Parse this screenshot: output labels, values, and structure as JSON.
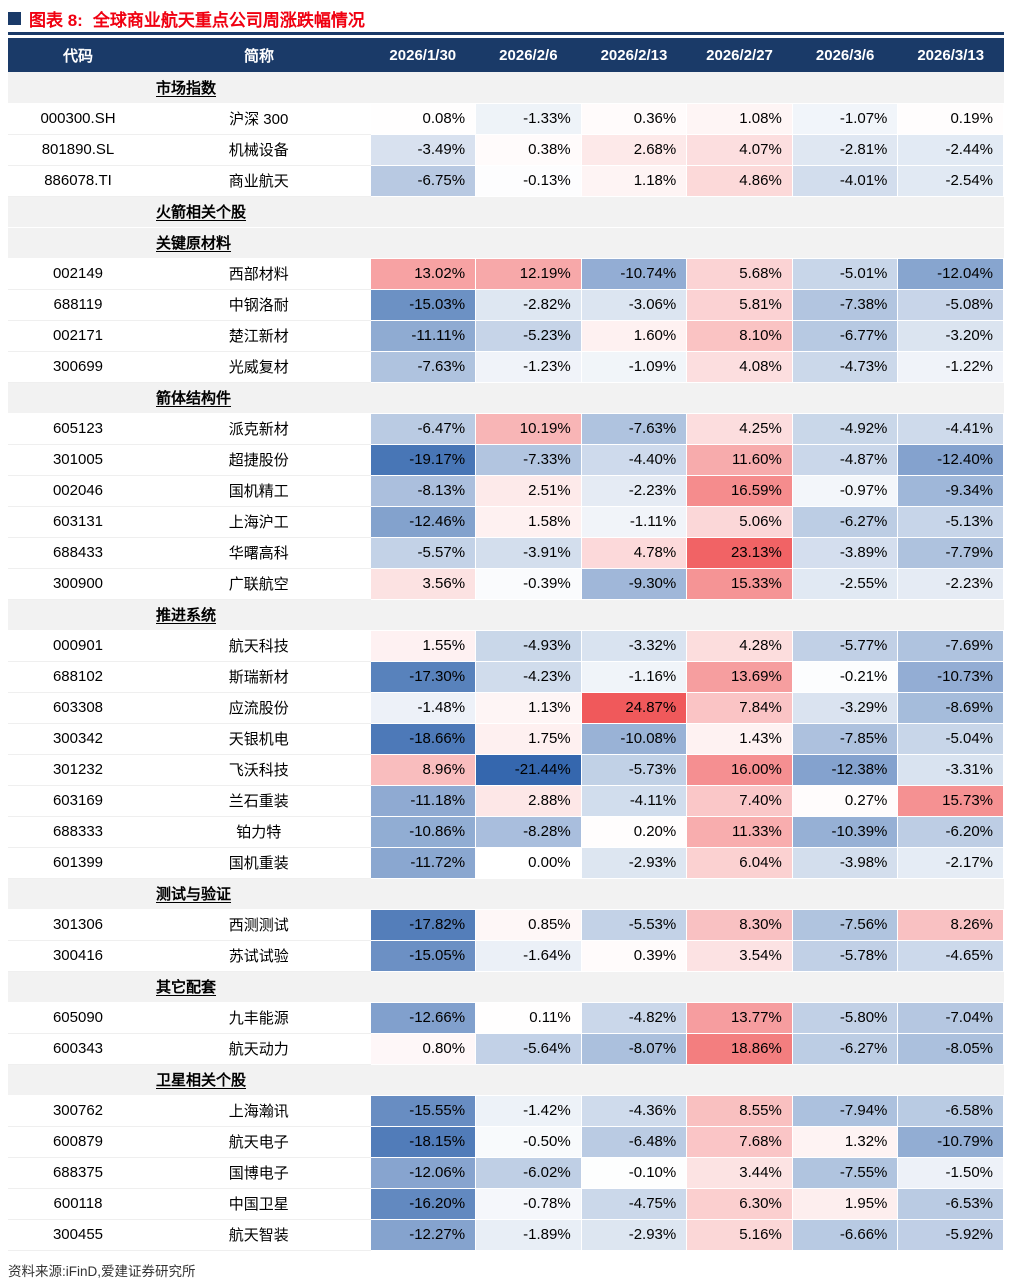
{
  "title": {
    "prefix": "图表 8:",
    "text": "全球商业航天重点公司周涨跌幅情况"
  },
  "footer": {
    "source": "资料来源:iFinD,爱建证券研究所"
  },
  "colors": {
    "header_bg": "#1A3A68",
    "title_red": "#F00011",
    "section_bg": "#F2F2F2"
  },
  "chart_data": {
    "type": "heatmap",
    "title": "全球商业航天重点公司周涨跌幅情况",
    "unit": "%",
    "row_headers": [
      "代码",
      "简称"
    ],
    "columns": [
      "2026/1/30",
      "2026/2/6",
      "2026/2/13",
      "2026/2/27",
      "2026/3/6",
      "2026/3/13"
    ],
    "color_scale": {
      "positive": "#F0595B",
      "negative": "#3567AE",
      "neutral": "#FFFFFF",
      "max_pos": 24.87,
      "max_neg": -21.44
    },
    "sections": [
      {
        "label": "市场指数",
        "rows": [
          {
            "code": "000300.SH",
            "name": "沪深 300",
            "values": [
              0.08,
              -1.33,
              0.36,
              1.08,
              -1.07,
              0.19
            ]
          },
          {
            "code": "801890.SL",
            "name": "机械设备",
            "values": [
              -3.49,
              0.38,
              2.68,
              4.07,
              -2.81,
              -2.44
            ]
          },
          {
            "code": "886078.TI",
            "name": "商业航天",
            "values": [
              -6.75,
              -0.13,
              1.18,
              4.86,
              -4.01,
              -2.54
            ]
          }
        ]
      },
      {
        "label": "火箭相关个股",
        "rows": []
      },
      {
        "label": "关键原材料",
        "rows": [
          {
            "code": "002149",
            "name": "西部材料",
            "values": [
              13.02,
              12.19,
              -10.74,
              5.68,
              -5.01,
              -12.04
            ]
          },
          {
            "code": "688119",
            "name": "中钢洛耐",
            "values": [
              -15.03,
              -2.82,
              -3.06,
              5.81,
              -7.38,
              -5.08
            ]
          },
          {
            "code": "002171",
            "name": "楚江新材",
            "values": [
              -11.11,
              -5.23,
              1.6,
              8.1,
              -6.77,
              -3.2
            ]
          },
          {
            "code": "300699",
            "name": "光威复材",
            "values": [
              -7.63,
              -1.23,
              -1.09,
              4.08,
              -4.73,
              -1.22
            ]
          }
        ]
      },
      {
        "label": "箭体结构件",
        "rows": [
          {
            "code": "605123",
            "name": "派克新材",
            "values": [
              -6.47,
              10.19,
              -7.63,
              4.25,
              -4.92,
              -4.41
            ]
          },
          {
            "code": "301005",
            "name": "超捷股份",
            "values": [
              -19.17,
              -7.33,
              -4.4,
              11.6,
              -4.87,
              -12.4
            ]
          },
          {
            "code": "002046",
            "name": "国机精工",
            "values": [
              -8.13,
              2.51,
              -2.23,
              16.59,
              -0.97,
              -9.34
            ]
          },
          {
            "code": "603131",
            "name": "上海沪工",
            "values": [
              -12.46,
              1.58,
              -1.11,
              5.06,
              -6.27,
              -5.13
            ]
          },
          {
            "code": "688433",
            "name": "华曙高科",
            "values": [
              -5.57,
              -3.91,
              4.78,
              23.13,
              -3.89,
              -7.79
            ]
          },
          {
            "code": "300900",
            "name": "广联航空",
            "values": [
              3.56,
              -0.39,
              -9.3,
              15.33,
              -2.55,
              -2.23
            ]
          }
        ]
      },
      {
        "label": "推进系统",
        "rows": [
          {
            "code": "000901",
            "name": "航天科技",
            "values": [
              1.55,
              -4.93,
              -3.32,
              4.28,
              -5.77,
              -7.69
            ]
          },
          {
            "code": "688102",
            "name": "斯瑞新材",
            "values": [
              -17.3,
              -4.23,
              -1.16,
              13.69,
              -0.21,
              -10.73
            ]
          },
          {
            "code": "603308",
            "name": "应流股份",
            "values": [
              -1.48,
              1.13,
              24.87,
              7.84,
              -3.29,
              -8.69
            ]
          },
          {
            "code": "300342",
            "name": "天银机电",
            "values": [
              -18.66,
              1.75,
              -10.08,
              1.43,
              -7.85,
              -5.04
            ]
          },
          {
            "code": "301232",
            "name": "飞沃科技",
            "values": [
              8.96,
              -21.44,
              -5.73,
              16.0,
              -12.38,
              -3.31
            ]
          },
          {
            "code": "603169",
            "name": "兰石重装",
            "values": [
              -11.18,
              2.88,
              -4.11,
              7.4,
              0.27,
              15.73
            ]
          },
          {
            "code": "688333",
            "name": "铂力特",
            "values": [
              -10.86,
              -8.28,
              0.2,
              11.33,
              -10.39,
              -6.2
            ]
          },
          {
            "code": "601399",
            "name": "国机重装",
            "values": [
              -11.72,
              0.0,
              -2.93,
              6.04,
              -3.98,
              -2.17
            ]
          }
        ]
      },
      {
        "label": "测试与验证",
        "rows": [
          {
            "code": "301306",
            "name": "西测测试",
            "values": [
              -17.82,
              0.85,
              -5.53,
              8.3,
              -7.56,
              8.26
            ]
          },
          {
            "code": "300416",
            "name": "苏试试验",
            "values": [
              -15.05,
              -1.64,
              0.39,
              3.54,
              -5.78,
              -4.65
            ]
          }
        ]
      },
      {
        "label": "其它配套",
        "rows": [
          {
            "code": "605090",
            "name": "九丰能源",
            "values": [
              -12.66,
              0.11,
              -4.82,
              13.77,
              -5.8,
              -7.04
            ]
          },
          {
            "code": "600343",
            "name": "航天动力",
            "values": [
              0.8,
              -5.64,
              -8.07,
              18.86,
              -6.27,
              -8.05
            ]
          }
        ]
      },
      {
        "label": "卫星相关个股",
        "rows": [
          {
            "code": "300762",
            "name": "上海瀚讯",
            "values": [
              -15.55,
              -1.42,
              -4.36,
              8.55,
              -7.94,
              -6.58
            ]
          },
          {
            "code": "600879",
            "name": "航天电子",
            "values": [
              -18.15,
              -0.5,
              -6.48,
              7.68,
              1.32,
              -10.79
            ]
          },
          {
            "code": "688375",
            "name": "国博电子",
            "values": [
              -12.06,
              -6.02,
              -0.1,
              3.44,
              -7.55,
              -1.5
            ]
          },
          {
            "code": "600118",
            "name": "中国卫星",
            "values": [
              -16.2,
              -0.78,
              -4.75,
              6.3,
              1.95,
              -6.53
            ]
          },
          {
            "code": "300455",
            "name": "航天智装",
            "values": [
              -12.27,
              -1.89,
              -2.93,
              5.16,
              -6.66,
              -5.92
            ]
          }
        ]
      }
    ]
  }
}
